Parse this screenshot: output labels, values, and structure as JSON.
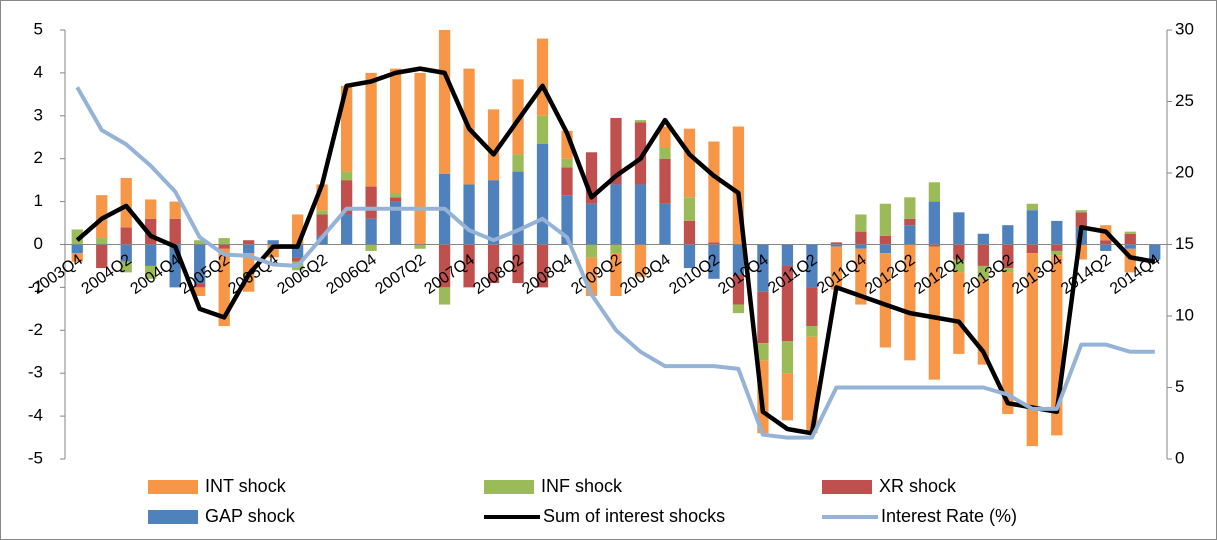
{
  "chart_data": {
    "type": "bar",
    "stacked": true,
    "categories": [
      "2003Q4",
      null,
      "2004Q2",
      null,
      "2004Q4",
      null,
      "2005Q2",
      null,
      "2005Q4",
      null,
      "2006Q2",
      null,
      "2006Q4",
      null,
      "2007Q2",
      null,
      "2007Q4",
      null,
      "2008Q2",
      null,
      "2008Q4",
      null,
      "2009Q2",
      null,
      "2009Q4",
      null,
      "2010Q2",
      null,
      "2010Q4",
      null,
      "2011Q2",
      null,
      "2011Q4",
      null,
      "2012Q2",
      null,
      "2012Q4",
      null,
      "2013Q2",
      null,
      "2013Q4",
      null,
      "2014Q2",
      null,
      "2014Q4"
    ],
    "series": [
      {
        "name": "INT shock",
        "type": "bar",
        "color": "#f79646",
        "values": [
          -0.2,
          1.0,
          1.15,
          0.45,
          0.4,
          -0.2,
          -1.8,
          -0.9,
          -0.3,
          0.7,
          0.6,
          2.0,
          2.65,
          2.9,
          4.0,
          3.35,
          2.7,
          1.65,
          1.75,
          1.8,
          0.65,
          -0.9,
          -1.0,
          -0.75,
          0.5,
          1.6,
          2.35,
          2.75,
          -1.7,
          -1.1,
          -2.25,
          -1.0,
          -1.3,
          -2.2,
          -2.7,
          -3.1,
          -1.9,
          -2.0,
          -3.3,
          -4.5,
          -4.2,
          -0.35,
          0.35,
          -0.55,
          0
        ]
      },
      {
        "name": "INF shock",
        "type": "bar",
        "color": "#9bbb59",
        "values": [
          0.35,
          0.15,
          -0.25,
          -0.3,
          0,
          0.1,
          0.15,
          0,
          0,
          -0.2,
          0.1,
          0.2,
          -0.15,
          0.1,
          -0.1,
          -0.4,
          0,
          0,
          0.4,
          0.65,
          0.2,
          -0.3,
          -0.2,
          0.05,
          0.25,
          0.55,
          0,
          -0.2,
          -0.4,
          -0.75,
          -0.25,
          0,
          0.4,
          0.75,
          0.5,
          0.45,
          -0.3,
          -0.3,
          -0.1,
          0.15,
          -0.1,
          0.05,
          0,
          0.05,
          0
        ]
      },
      {
        "name": "XR shock",
        "type": "bar",
        "color": "#c0504d",
        "values": [
          0,
          -0.55,
          0.4,
          0.6,
          0.6,
          -0.1,
          -0.1,
          0.1,
          0,
          -0.1,
          0.5,
          0.8,
          0.75,
          0.1,
          0,
          -1.0,
          -1.0,
          -0.9,
          -0.9,
          -1.0,
          0.65,
          1.2,
          1.55,
          1.45,
          1.05,
          0.55,
          0.05,
          -0.7,
          -1.2,
          -1.75,
          -0.9,
          0.05,
          0.3,
          0.2,
          0.15,
          -0.05,
          -0.35,
          -0.5,
          -0.55,
          -0.2,
          -0.15,
          0.35,
          0.1,
          0.25,
          0
        ]
      },
      {
        "name": "GAP shock",
        "type": "bar",
        "color": "#4f81bd",
        "values": [
          -0.2,
          0,
          -0.4,
          -0.5,
          -1.0,
          -0.9,
          0,
          -0.2,
          0.1,
          -0.3,
          0.2,
          0.7,
          0.6,
          1.0,
          0,
          1.65,
          1.4,
          1.5,
          1.7,
          2.35,
          1.15,
          0.95,
          1.4,
          1.4,
          0.95,
          -0.55,
          -0.8,
          -0.7,
          -1.1,
          -0.5,
          -1.0,
          -0.05,
          -0.1,
          -0.2,
          0.45,
          1.0,
          0.75,
          0.25,
          0.45,
          0.8,
          0.55,
          0.4,
          -0.15,
          -0.1,
          -0.35
        ]
      },
      {
        "name": "Sum of interest shocks",
        "type": "line",
        "color": "#000000",
        "values": [
          0.1,
          0.6,
          0.9,
          0.2,
          -0.05,
          -1.5,
          -1.7,
          -0.7,
          -0.05,
          -0.05,
          1.4,
          3.7,
          3.8,
          4.0,
          4.1,
          4.0,
          2.7,
          2.1,
          2.9,
          3.7,
          2.6,
          1.1,
          1.6,
          2.0,
          2.9,
          2.1,
          1.6,
          1.2,
          -3.9,
          -4.3,
          -4.4,
          -1.0,
          -1.2,
          -1.4,
          -1.6,
          -1.7,
          -1.8,
          -2.5,
          -3.7,
          -3.8,
          -3.9,
          0.4,
          0.3,
          -0.3,
          -0.4
        ]
      },
      {
        "name": "Interest Rate (%)",
        "type": "line",
        "axis": "y2",
        "color": "#95b3d7",
        "values": [
          26,
          23,
          22,
          20.5,
          18.7,
          15.5,
          14.3,
          14.2,
          13.6,
          13.5,
          15.5,
          17.5,
          17.5,
          17.5,
          17.5,
          17.5,
          16,
          15.3,
          16,
          16.8,
          15.5,
          11.5,
          9,
          7.5,
          6.5,
          6.5,
          6.5,
          6.3,
          1.7,
          1.5,
          1.5,
          5,
          5,
          5,
          5,
          5,
          5,
          5,
          4.5,
          3.5,
          3.5,
          8,
          8,
          7.5,
          7.5
        ]
      }
    ],
    "ylim": [
      -5,
      5
    ],
    "yticks": [
      -5,
      -4,
      -3,
      -2,
      -1,
      0,
      1,
      2,
      3,
      4,
      5
    ],
    "y2lim": [
      0,
      30
    ],
    "y2ticks": [
      0,
      5,
      10,
      15,
      20,
      25,
      30
    ],
    "grid": false,
    "legend": "bottom"
  }
}
